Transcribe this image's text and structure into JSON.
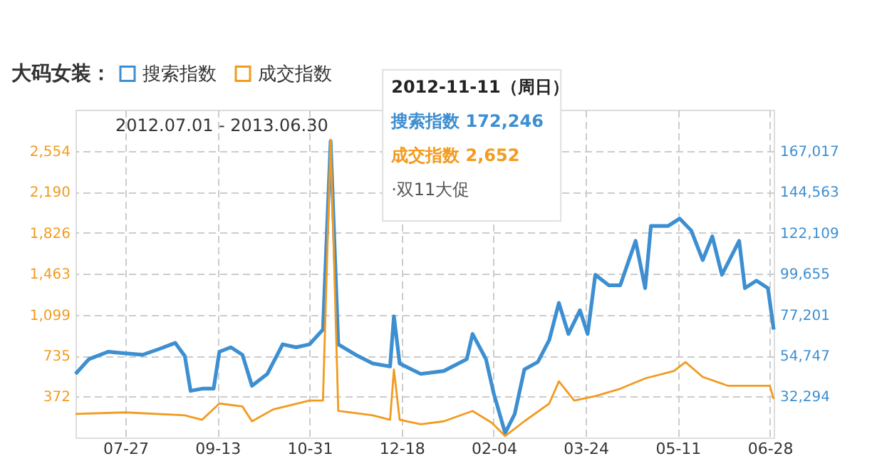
{
  "chart_data": {
    "type": "line",
    "legend_title": "大码女装：",
    "legend": "top left",
    "grid": true,
    "marker": "none",
    "line_style": "solid",
    "annotations": [
      "2012.07.01 - 2013.06.30",
      "2012-11-11（周日）",
      "搜索指数 172,246",
      "成交指数 2,652",
      "·双11大促"
    ],
    "xlim": [
      "2012-07-01",
      "2013-06-30"
    ],
    "xticks": [
      {
        "value": "2012-07-27",
        "label": "07-27"
      },
      {
        "value": "2012-09-13",
        "label": "09-13"
      },
      {
        "value": "2012-10-31",
        "label": "10-31"
      },
      {
        "value": "2012-12-18",
        "label": "12-18"
      },
      {
        "value": "2013-02-04",
        "label": "02-04"
      },
      {
        "value": "2013-03-24",
        "label": "03-24"
      },
      {
        "value": "2013-05-11",
        "label": "05-11"
      },
      {
        "value": "2013-06-28",
        "label": "06-28"
      }
    ],
    "ylim": [
      8,
      2918
    ],
    "yticks": [
      372,
      735,
      {
        "value": 1099,
        "label": "1,099"
      },
      {
        "value": 1463,
        "label": "1,463"
      },
      {
        "value": 1826,
        "label": "1,826"
      },
      {
        "value": 2190,
        "label": "2,190"
      },
      {
        "value": 2554,
        "label": "2,554"
      }
    ],
    "y2lim": [
      9840,
      189471
    ],
    "y2ticks": [
      {
        "value": 32294,
        "label": "32,294"
      },
      {
        "value": 54747,
        "label": "54,747"
      },
      {
        "value": 77201,
        "label": "77,201"
      },
      {
        "value": 99655,
        "label": "99,655"
      },
      {
        "value": 122109,
        "label": "122,109"
      },
      {
        "value": 144563,
        "label": "144,563"
      },
      {
        "value": 167017,
        "label": "167,017"
      }
    ],
    "series": [
      {
        "name": "搜索指数",
        "color": "#3d8fd1",
        "axis": "y2",
        "x": [
          "2012-07-01",
          "2012-07-08",
          "2012-07-18",
          "2012-07-27",
          "2012-08-05",
          "2012-08-14",
          "2012-08-22",
          "2012-08-27",
          "2012-08-30",
          "2012-09-05",
          "2012-09-11",
          "2012-09-14",
          "2012-09-20",
          "2012-09-26",
          "2012-10-01",
          "2012-10-09",
          "2012-10-17",
          "2012-10-24",
          "2012-10-31",
          "2012-11-07",
          "2012-11-11",
          "2012-11-15",
          "2012-11-24",
          "2012-12-03",
          "2012-12-12",
          "2012-12-14",
          "2012-12-17",
          "2012-12-28",
          "2013-01-09",
          "2013-01-21",
          "2013-01-24",
          "2013-01-31",
          "2013-02-04",
          "2013-02-10",
          "2013-02-15",
          "2013-02-20",
          "2013-02-27",
          "2013-03-05",
          "2013-03-10",
          "2013-03-15",
          "2013-03-21",
          "2013-03-25",
          "2013-03-29",
          "2013-04-05",
          "2013-04-11",
          "2013-04-19",
          "2013-04-24",
          "2013-04-27",
          "2013-05-06",
          "2013-05-12",
          "2013-05-18",
          "2013-05-24",
          "2013-05-29",
          "2013-06-03",
          "2013-06-12",
          "2013-06-15",
          "2013-06-21",
          "2013-06-27",
          "2013-06-30"
        ],
        "values": [
          44700,
          52800,
          56850,
          56000,
          55200,
          58500,
          61700,
          54400,
          35400,
          36600,
          36600,
          56850,
          59300,
          55200,
          38200,
          44700,
          60900,
          59300,
          60900,
          69000,
          172246,
          60900,
          55200,
          50400,
          48800,
          76300,
          50400,
          44700,
          46300,
          52800,
          66600,
          52800,
          34200,
          12300,
          22800,
          47100,
          51200,
          63300,
          83600,
          66600,
          79600,
          66600,
          99000,
          93300,
          93300,
          117600,
          91700,
          125800,
          125800,
          129800,
          123300,
          107100,
          120100,
          99000,
          117600,
          91700,
          95800,
          91700,
          69000
        ]
      },
      {
        "name": "成交指数",
        "color": "#f29b1f",
        "axis": "y",
        "x": [
          "2012-07-01",
          "2012-07-27",
          "2012-08-27",
          "2012-09-05",
          "2012-09-14",
          "2012-09-26",
          "2012-10-01",
          "2012-10-12",
          "2012-10-31",
          "2012-11-07",
          "2012-11-11",
          "2012-11-15",
          "2012-12-03",
          "2012-12-12",
          "2012-12-14",
          "2012-12-17",
          "2012-12-28",
          "2013-01-09",
          "2013-01-24",
          "2013-02-03",
          "2013-02-10",
          "2013-02-20",
          "2013-03-05",
          "2013-03-10",
          "2013-03-18",
          "2013-03-29",
          "2013-04-11",
          "2013-04-24",
          "2013-05-09",
          "2013-05-15",
          "2013-05-24",
          "2013-06-06",
          "2013-06-18",
          "2013-06-28",
          "2013-06-30"
        ],
        "values": [
          218,
          231,
          205,
          166,
          310,
          284,
          152,
          257,
          336,
          336,
          2652,
          244,
          205,
          166,
          612,
          166,
          126,
          152,
          244,
          139,
          21,
          152,
          310,
          507,
          336,
          376,
          441,
          533,
          599,
          678,
          546,
          468,
          468,
          468,
          349
        ]
      }
    ]
  }
}
